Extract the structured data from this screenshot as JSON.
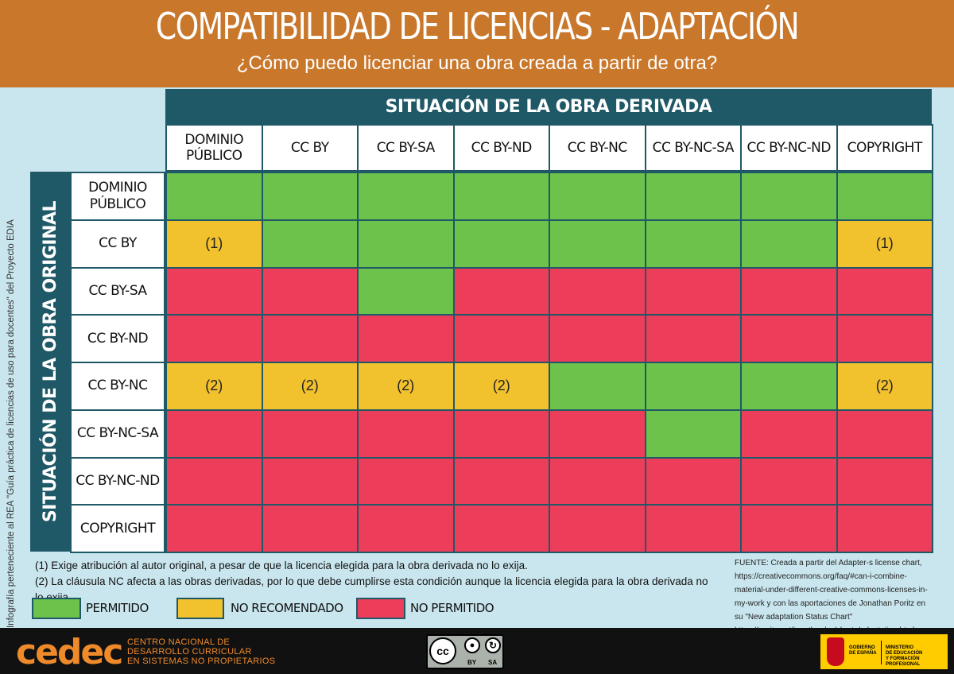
{
  "header": {
    "title": "COMPATIBILIDAD DE LICENCIAS - ADAPTACIÓN",
    "subtitle": "¿Cómo puedo licenciar una obra creada a partir de otra?"
  },
  "side_credit": "Infografía perteneciente al REA \"Guía práctica de licencias de uso para docentes\" del Proyecto EDIA",
  "matrix": {
    "col_title": "SITUACIÓN DE LA OBRA DERIVADA",
    "row_title": "SITUACIÓN DE LA OBRA ORIGINAL",
    "columns": [
      "DOMINIO PÚBLICO",
      "CC BY",
      "CC BY-SA",
      "CC BY-ND",
      "CC BY-NC",
      "CC BY-NC-SA",
      "CC BY-NC-ND",
      "COPYRIGHT"
    ],
    "rows": [
      {
        "label": "DOMINIO PÚBLICO",
        "cells": [
          "G",
          "G",
          "G",
          "G",
          "G",
          "G",
          "G",
          "G"
        ],
        "marks": [
          "",
          "",
          "",
          "",
          "",
          "",
          "",
          ""
        ]
      },
      {
        "label": "CC BY",
        "cells": [
          "Y",
          "G",
          "G",
          "G",
          "G",
          "G",
          "G",
          "Y"
        ],
        "marks": [
          "(1)",
          "",
          "",
          "",
          "",
          "",
          "",
          "(1)"
        ]
      },
      {
        "label": "CC BY-SA",
        "cells": [
          "R",
          "R",
          "G",
          "R",
          "R",
          "R",
          "R",
          "R"
        ],
        "marks": [
          "",
          "",
          "",
          "",
          "",
          "",
          "",
          ""
        ]
      },
      {
        "label": "CC BY-ND",
        "cells": [
          "R",
          "R",
          "R",
          "R",
          "R",
          "R",
          "R",
          "R"
        ],
        "marks": [
          "",
          "",
          "",
          "",
          "",
          "",
          "",
          ""
        ]
      },
      {
        "label": "CC BY-NC",
        "cells": [
          "Y",
          "Y",
          "Y",
          "Y",
          "G",
          "G",
          "G",
          "Y"
        ],
        "marks": [
          "(2)",
          "(2)",
          "(2)",
          "(2)",
          "",
          "",
          "",
          "(2)"
        ]
      },
      {
        "label": "CC BY-NC-SA",
        "cells": [
          "R",
          "R",
          "R",
          "R",
          "R",
          "G",
          "R",
          "R"
        ],
        "marks": [
          "",
          "",
          "",
          "",
          "",
          "",
          "",
          ""
        ]
      },
      {
        "label": "CC BY-NC-ND",
        "cells": [
          "R",
          "R",
          "R",
          "R",
          "R",
          "R",
          "R",
          "R"
        ],
        "marks": [
          "",
          "",
          "",
          "",
          "",
          "",
          "",
          ""
        ]
      },
      {
        "label": "COPYRIGHT",
        "cells": [
          "R",
          "R",
          "R",
          "R",
          "R",
          "R",
          "R",
          "R"
        ],
        "marks": [
          "",
          "",
          "",
          "",
          "",
          "",
          "",
          ""
        ]
      }
    ]
  },
  "colors": {
    "G": "#6cc24a",
    "Y": "#f2c12e",
    "R": "#ec3e5a",
    "band": "#1f5866",
    "header": "#c9772a"
  },
  "notes": [
    "(1) Exige atribución al autor original, a pesar de que la licencia elegida para la obra derivada no lo exija.",
    "(2) La cláusula NC afecta a las obras derivadas, por lo que debe cumplirse esta condición aunque la licencia elegida para la obra derivada no lo exija."
  ],
  "source": "FUENTE: Creada a partir del Adapter-s license chart, https://creativecommons.org/faq/#can-i-combine-material-under-different-creative-commons-licenses-in-my-work y con las aportaciones de Jonathan Poritz en su \"New adaptation Status Chart\" https://poritz.net/jonathan/cc/charts/adaptation.html",
  "legend": {
    "permitido": "PERMITIDO",
    "no_recomendado": "NO RECOMENDADO",
    "no_permitido": "NO PERMITIDO"
  },
  "footer": {
    "cedec": "cedec",
    "cedec_line1": "CENTRO NACIONAL DE",
    "cedec_line2": "DESARROLLO CURRICULAR",
    "cedec_line3": "EN SISTEMAS NO PROPIETARIOS",
    "cc": "cc",
    "by": "BY",
    "sa": "SA",
    "gov_line1": "GOBIERNO",
    "gov_line2": "DE ESPAÑA",
    "min_line1": "MINISTERIO",
    "min_line2": "DE EDUCACIÓN",
    "min_line3": "Y FORMACIÓN PROFESIONAL"
  }
}
